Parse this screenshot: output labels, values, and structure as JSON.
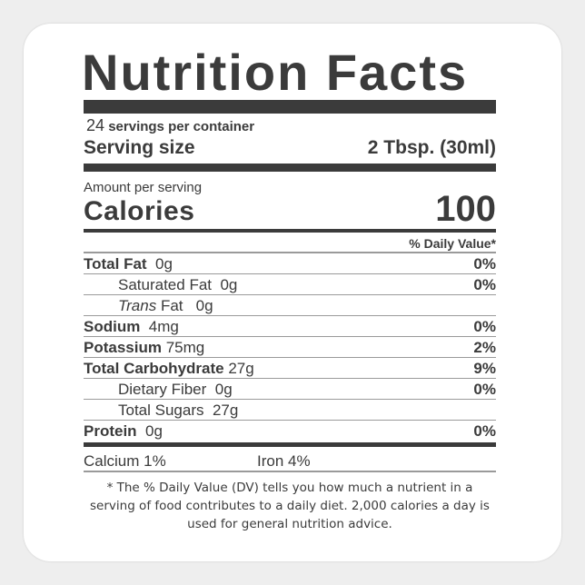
{
  "title": "Nutrition Facts",
  "servings": {
    "count": "24",
    "label": "servings per container"
  },
  "serving_size": {
    "label": "Serving size",
    "value": "2 Tbsp. (30ml)"
  },
  "amount_per_serving": "Amount per serving",
  "calories": {
    "label": "Calories",
    "value": "100"
  },
  "daily_value_header": "% Daily Value*",
  "nutrients": [
    {
      "name": "Total Fat",
      "amount": "0g",
      "dv": "0%"
    },
    {
      "name": "Saturated Fat",
      "amount": "0g",
      "dv": "0%"
    },
    {
      "name_italic": "Trans",
      "name": "Fat",
      "amount": "0g",
      "dv": ""
    },
    {
      "name": "Sodium",
      "amount": "4mg",
      "dv": "0%"
    },
    {
      "name": "Potassium",
      "amount": "75mg",
      "dv": "2%"
    },
    {
      "name": "Total Carbohydrate",
      "amount": "27g",
      "dv": "9%"
    },
    {
      "name": "Dietary Fiber",
      "amount": "0g",
      "dv": "0%"
    },
    {
      "name": "Total Sugars",
      "amount": "27g",
      "dv": ""
    },
    {
      "name": "Protein",
      "amount": "0g",
      "dv": "0%"
    }
  ],
  "minerals": {
    "calcium": "Calcium 1%",
    "iron": "Iron 4%"
  },
  "footnote": "* The % Daily Value (DV) tells you how much a nutrient in a serving of food contributes to a daily diet. 2,000 calories a day is used for general nutrition advice."
}
